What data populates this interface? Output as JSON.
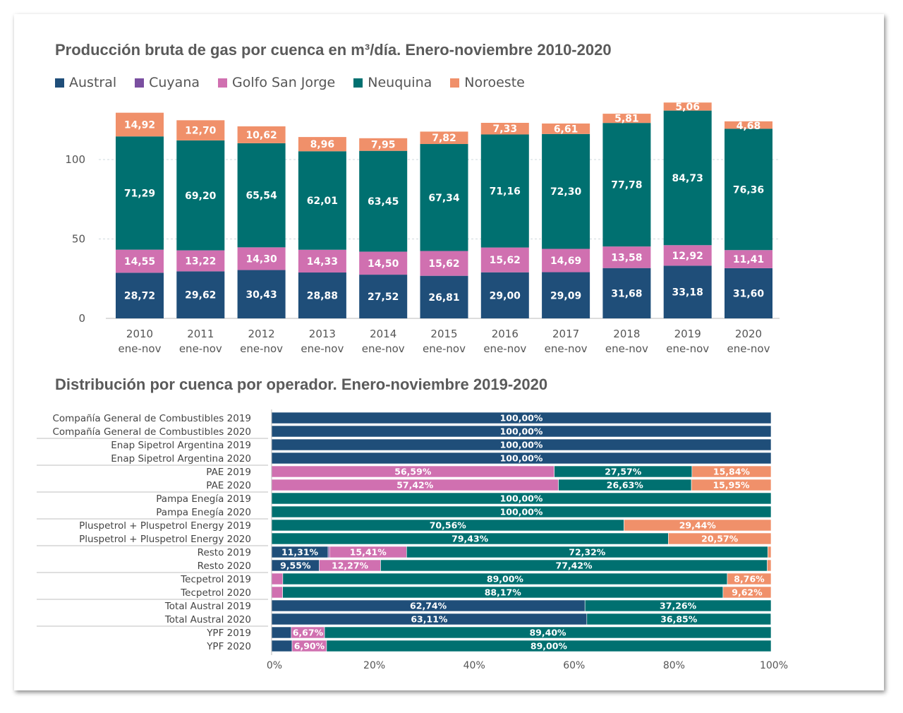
{
  "colors": {
    "Austral": "#1f4e79",
    "Cuyana": "#7a4fa0",
    "Golfo San Jorge": "#d070b0",
    "Neuquina": "#007070",
    "Noroeste": "#f0906a"
  },
  "chart_data": [
    {
      "type": "bar",
      "stacked": true,
      "title": "Producción bruta de gas por cuenca en m³/día. Enero-noviembre 2010-2020",
      "categories": [
        "2010",
        "2011",
        "2012",
        "2013",
        "2014",
        "2015",
        "2016",
        "2017",
        "2018",
        "2019",
        "2020"
      ],
      "category_sub": "ene-nov",
      "ylim": [
        0,
        140
      ],
      "yticks": [
        0,
        50,
        100
      ],
      "grid": true,
      "legend": [
        "Austral",
        "Cuyana",
        "Golfo San Jorge",
        "Neuquina",
        "Noroeste"
      ],
      "series": [
        {
          "name": "Austral",
          "values": [
            28.72,
            29.62,
            30.43,
            28.88,
            27.52,
            26.81,
            29.0,
            29.09,
            31.68,
            33.18,
            31.6
          ],
          "labels": [
            "28,72",
            "29,62",
            "30,43",
            "28,88",
            "27,52",
            "26,81",
            "29,00",
            "29,09",
            "31,68",
            "33,18",
            "31,60"
          ]
        },
        {
          "name": "Golfo San Jorge",
          "values": [
            14.55,
            13.22,
            14.3,
            14.33,
            14.5,
            15.62,
            15.62,
            14.69,
            13.58,
            12.92,
            11.41
          ],
          "labels": [
            "14,55",
            "13,22",
            "14,30",
            "14,33",
            "14,50",
            "15,62",
            "15,62",
            "14,69",
            "13,58",
            "12,92",
            "11,41"
          ]
        },
        {
          "name": "Neuquina",
          "values": [
            71.29,
            69.2,
            65.54,
            62.01,
            63.45,
            67.34,
            71.16,
            72.3,
            77.78,
            84.73,
            76.36
          ],
          "labels": [
            "71,29",
            "69,20",
            "65,54",
            "62,01",
            "63,45",
            "67,34",
            "71,16",
            "72,30",
            "77,78",
            "84,73",
            "76,36"
          ]
        },
        {
          "name": "Noroeste",
          "values": [
            14.92,
            12.7,
            10.62,
            8.96,
            7.95,
            7.82,
            7.33,
            6.61,
            5.81,
            5.06,
            4.68
          ],
          "labels": [
            "14,92",
            "12,70",
            "10,62",
            "8,96",
            "7,95",
            "7,82",
            "7,33",
            "6,61",
            "5,81",
            "5,06",
            "4,68"
          ]
        }
      ]
    },
    {
      "type": "bar",
      "orientation": "horizontal",
      "stacked": true,
      "percent": true,
      "title": "Distribución por cuenca por operador. Enero-noviembre 2019-2020",
      "xticks": [
        "0%",
        "20%",
        "40%",
        "60%",
        "80%",
        "100%"
      ],
      "rows": [
        {
          "label": "Compañía General de Combustibles 2019",
          "segments": [
            {
              "cuenca": "Austral",
              "value": 100.0,
              "label": "100,00%"
            }
          ]
        },
        {
          "label": "Compañía General de Combustibles 2020",
          "segments": [
            {
              "cuenca": "Austral",
              "value": 100.0,
              "label": "100,00%"
            }
          ]
        },
        {
          "label": "Enap Sipetrol Argentina 2019",
          "segments": [
            {
              "cuenca": "Austral",
              "value": 100.0,
              "label": "100,00%"
            }
          ]
        },
        {
          "label": "Enap Sipetrol Argentina 2020",
          "segments": [
            {
              "cuenca": "Austral",
              "value": 100.0,
              "label": "100,00%"
            }
          ]
        },
        {
          "label": "PAE 2019",
          "segments": [
            {
              "cuenca": "Golfo San Jorge",
              "value": 56.59,
              "label": "56,59%"
            },
            {
              "cuenca": "Neuquina",
              "value": 27.57,
              "label": "27,57%"
            },
            {
              "cuenca": "Noroeste",
              "value": 15.84,
              "label": "15,84%"
            }
          ]
        },
        {
          "label": "PAE 2020",
          "segments": [
            {
              "cuenca": "Golfo San Jorge",
              "value": 57.42,
              "label": "57,42%"
            },
            {
              "cuenca": "Neuquina",
              "value": 26.63,
              "label": "26,63%"
            },
            {
              "cuenca": "Noroeste",
              "value": 15.95,
              "label": "15,95%"
            }
          ]
        },
        {
          "label": "Pampa Enegía 2019",
          "segments": [
            {
              "cuenca": "Neuquina",
              "value": 100.0,
              "label": "100,00%"
            }
          ]
        },
        {
          "label": "Pampa Enegía 2020",
          "segments": [
            {
              "cuenca": "Neuquina",
              "value": 100.0,
              "label": "100,00%"
            }
          ]
        },
        {
          "label": "Pluspetrol + Pluspetrol Energy 2019",
          "segments": [
            {
              "cuenca": "Neuquina",
              "value": 70.56,
              "label": "70,56%"
            },
            {
              "cuenca": "Noroeste",
              "value": 29.44,
              "label": "29,44%"
            }
          ]
        },
        {
          "label": "Pluspetrol + Pluspetrol Energy 2020",
          "segments": [
            {
              "cuenca": "Neuquina",
              "value": 79.43,
              "label": "79,43%"
            },
            {
              "cuenca": "Noroeste",
              "value": 20.57,
              "label": "20,57%"
            }
          ]
        },
        {
          "label": "Resto 2019",
          "segments": [
            {
              "cuenca": "Austral",
              "value": 11.31,
              "label": "11,31%"
            },
            {
              "cuenca": "Cuyana",
              "value": 0.3,
              "label": ""
            },
            {
              "cuenca": "Golfo San Jorge",
              "value": 15.41,
              "label": "15,41%"
            },
            {
              "cuenca": "Neuquina",
              "value": 72.32,
              "label": "72,32%"
            },
            {
              "cuenca": "Noroeste",
              "value": 0.66,
              "label": ""
            }
          ]
        },
        {
          "label": "Resto 2020",
          "segments": [
            {
              "cuenca": "Austral",
              "value": 9.55,
              "label": "9,55%"
            },
            {
              "cuenca": "Golfo San Jorge",
              "value": 12.27,
              "label": "12,27%"
            },
            {
              "cuenca": "Neuquina",
              "value": 77.42,
              "label": "77,42%"
            },
            {
              "cuenca": "Noroeste",
              "value": 0.76,
              "label": ""
            }
          ]
        },
        {
          "label": "Tecpetrol 2019",
          "segments": [
            {
              "cuenca": "Golfo San Jorge",
              "value": 2.24,
              "label": ""
            },
            {
              "cuenca": "Neuquina",
              "value": 89.0,
              "label": "89,00%"
            },
            {
              "cuenca": "Noroeste",
              "value": 8.76,
              "label": "8,76%"
            }
          ]
        },
        {
          "label": "Tecpetrol 2020",
          "segments": [
            {
              "cuenca": "Golfo San Jorge",
              "value": 2.21,
              "label": ""
            },
            {
              "cuenca": "Neuquina",
              "value": 88.17,
              "label": "88,17%"
            },
            {
              "cuenca": "Noroeste",
              "value": 9.62,
              "label": "9,62%"
            }
          ]
        },
        {
          "label": "Total Austral 2019",
          "segments": [
            {
              "cuenca": "Austral",
              "value": 62.74,
              "label": "62,74%"
            },
            {
              "cuenca": "Neuquina",
              "value": 37.26,
              "label": "37,26%"
            }
          ]
        },
        {
          "label": "Total Austral 2020",
          "segments": [
            {
              "cuenca": "Austral",
              "value": 63.11,
              "label": "63,11%"
            },
            {
              "cuenca": "Neuquina",
              "value": 36.85,
              "label": "36,85%"
            }
          ]
        },
        {
          "label": "YPF 2019",
          "segments": [
            {
              "cuenca": "Austral",
              "value": 3.93,
              "label": ""
            },
            {
              "cuenca": "Golfo San Jorge",
              "value": 6.67,
              "label": "6,67%"
            },
            {
              "cuenca": "Neuquina",
              "value": 89.4,
              "label": "89,40%"
            }
          ]
        },
        {
          "label": "YPF 2020",
          "segments": [
            {
              "cuenca": "Austral",
              "value": 4.1,
              "label": ""
            },
            {
              "cuenca": "Golfo San Jorge",
              "value": 6.9,
              "label": "6,90%"
            },
            {
              "cuenca": "Neuquina",
              "value": 89.0,
              "label": "89,00%"
            }
          ]
        }
      ]
    }
  ]
}
